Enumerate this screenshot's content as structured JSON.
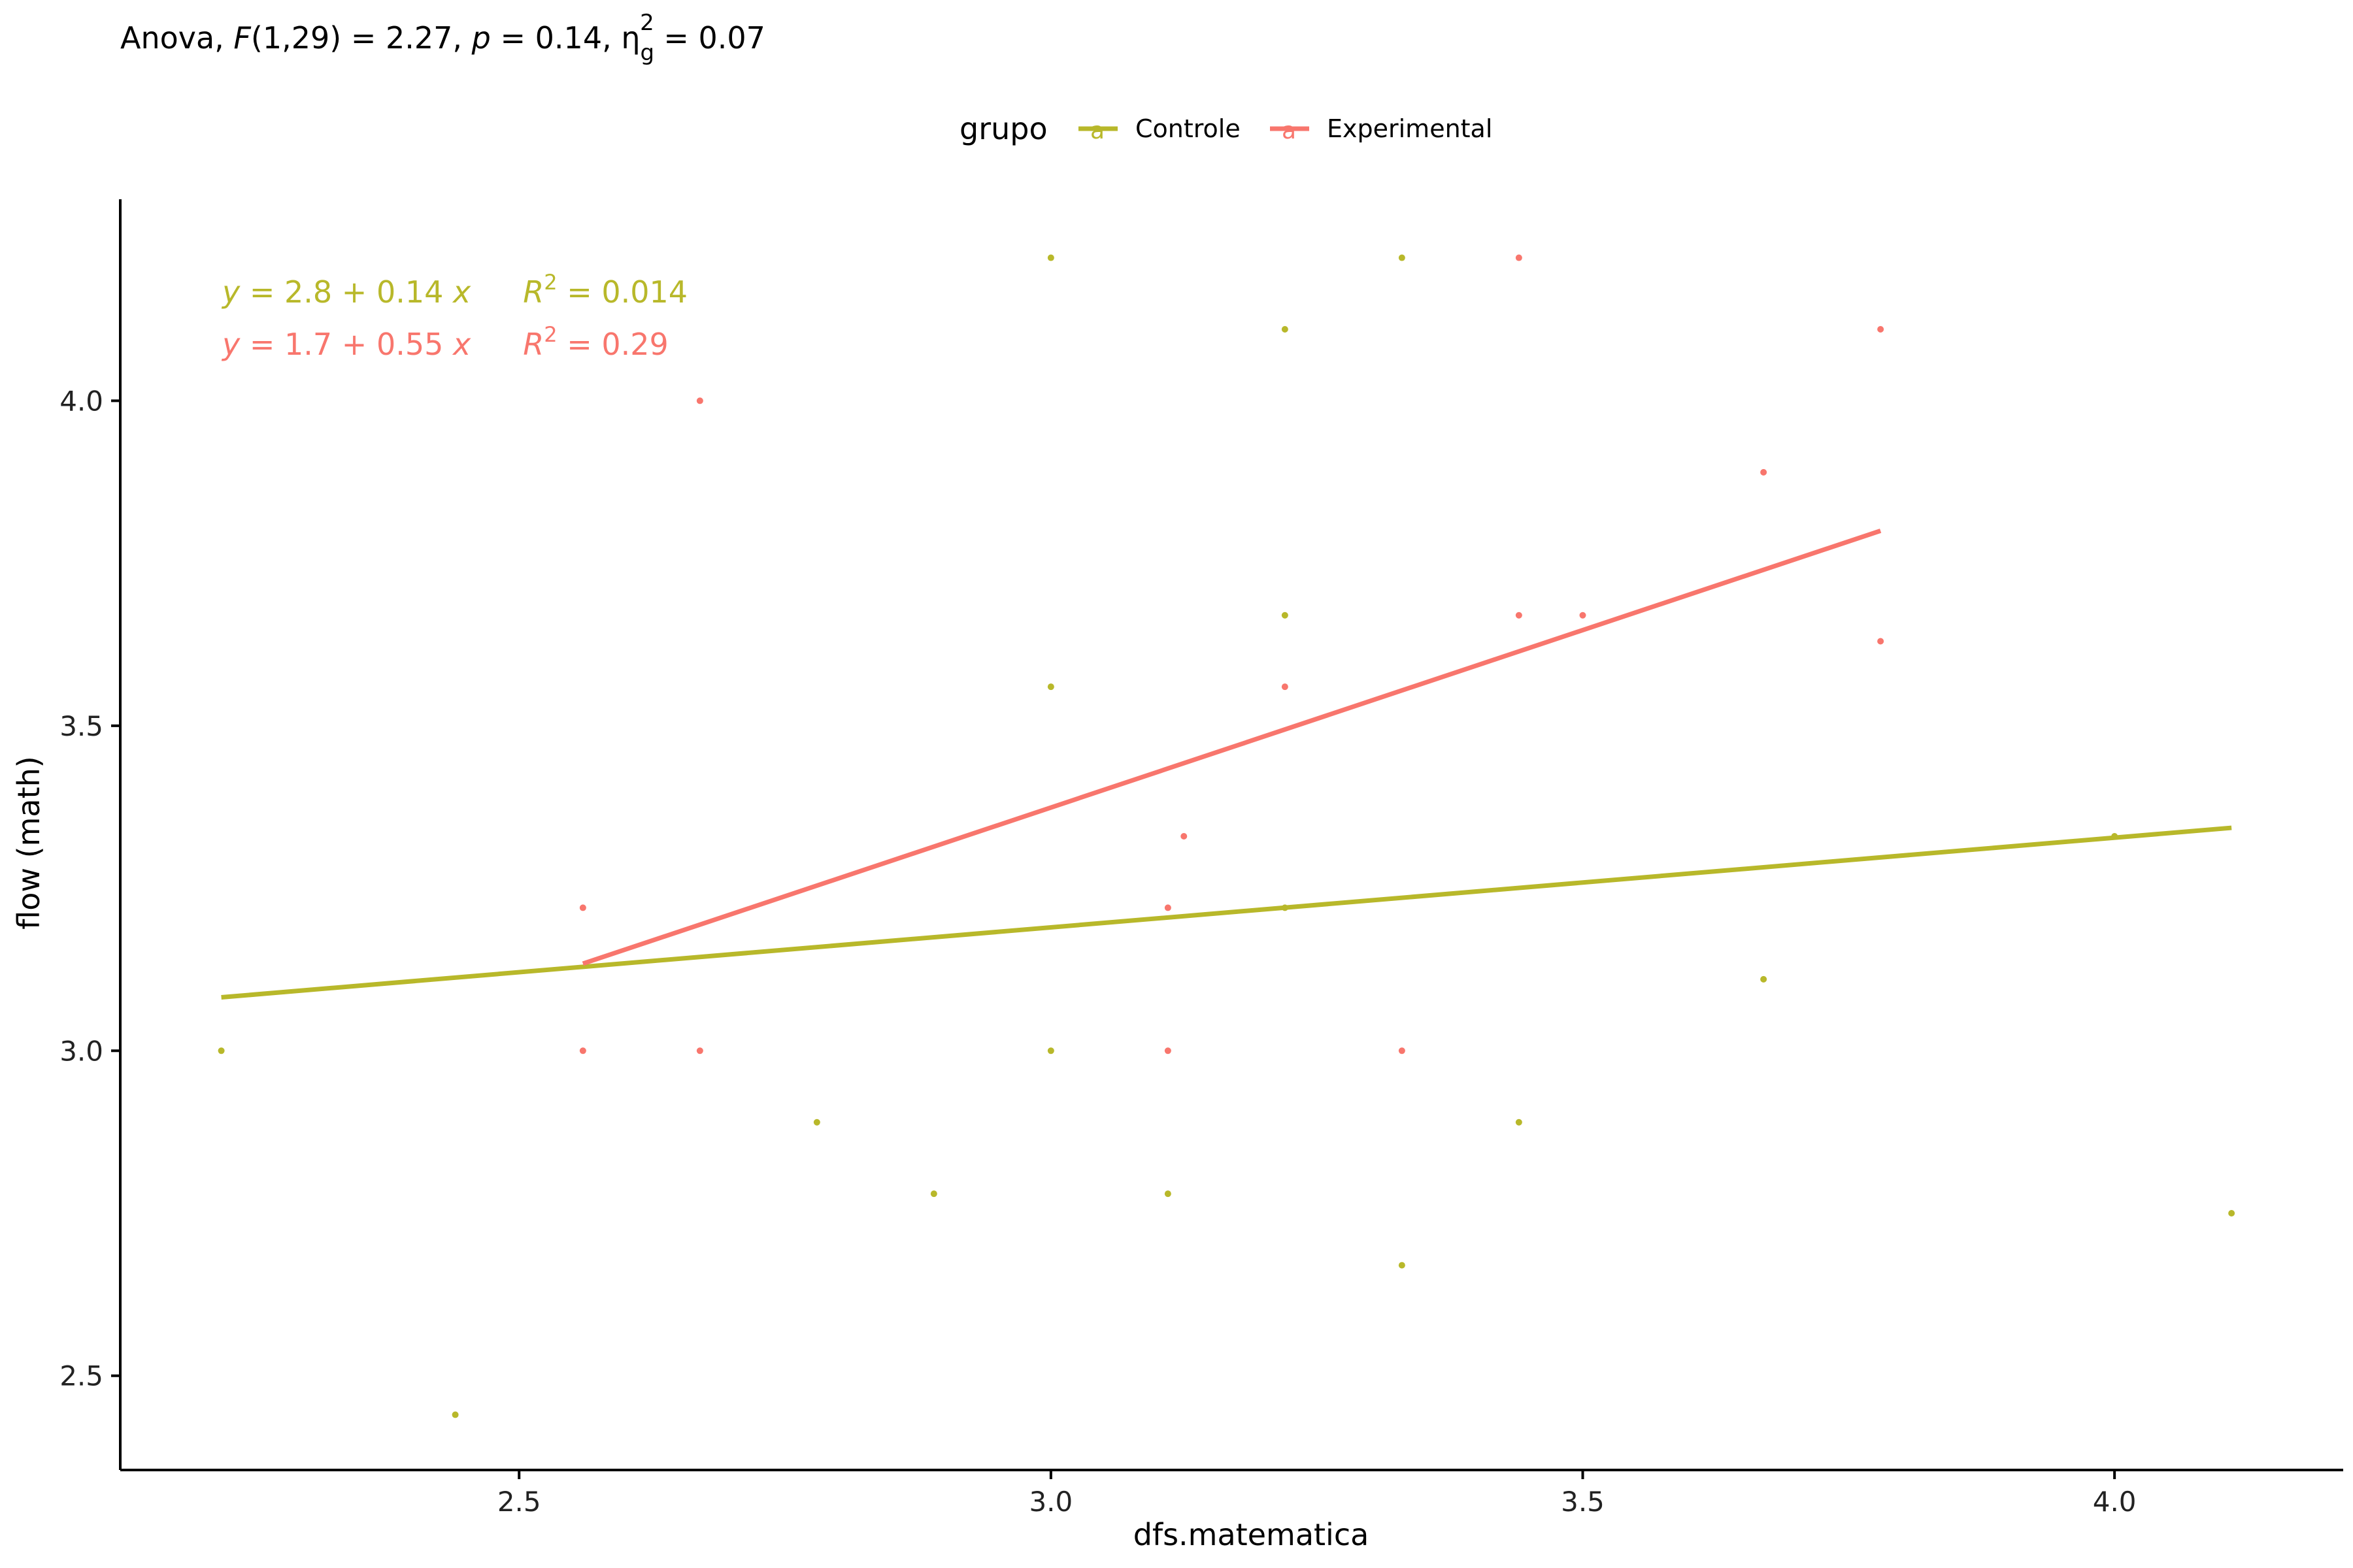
{
  "subtitle": {
    "prefix": "Anova, ",
    "f_symbol": "F",
    "df": "(1,29)",
    "f_value": " = 2.27, ",
    "p_symbol": "p",
    "p_value": " = 0.14, ",
    "eta_symbol": "η",
    "eta_sub": "g",
    "eta_sup": "2",
    "eta_value": " = 0.07"
  },
  "legend": {
    "title": "grupo",
    "key_glyph": "a",
    "position": "top"
  },
  "colors": {
    "controle": "#b8b82a",
    "experimental": "#f8766d",
    "axis": "#000000",
    "background": "#ffffff"
  },
  "equations": [
    {
      "series": "Controle",
      "y_part": "y",
      "eq_part": " = 2.8 + 0.14 ",
      "x_part": "x",
      "r_part": "R",
      "r_sup": "2",
      "r_value": " = 0.014"
    },
    {
      "series": "Experimental",
      "y_part": "y",
      "eq_part": " = 1.7 + 0.55 ",
      "x_part": "x",
      "r_part": "R",
      "r_sup": "2",
      "r_value": " = 0.29"
    }
  ],
  "chart_data": {
    "type": "scatter",
    "xlabel": "dfs.matematica",
    "ylabel": "flow (math)",
    "xlim": [
      2.125,
      4.215
    ],
    "ylim": [
      2.355,
      4.31
    ],
    "xticks": [
      2.5,
      3.0,
      3.5,
      4.0
    ],
    "xtick_labels": [
      "2.5",
      "3.0",
      "3.5",
      "4.0"
    ],
    "yticks": [
      2.5,
      3.0,
      3.5,
      4.0
    ],
    "ytick_labels": [
      "2.5",
      "3.0",
      "3.5",
      "4.0"
    ],
    "grid": false,
    "series": [
      {
        "name": "Controle",
        "points": [
          [
            2.22,
            3.0
          ],
          [
            2.44,
            2.44
          ],
          [
            2.78,
            2.89
          ],
          [
            2.89,
            2.78
          ],
          [
            3.0,
            4.22
          ],
          [
            3.0,
            3.56
          ],
          [
            3.0,
            3.0
          ],
          [
            3.11,
            2.78
          ],
          [
            3.22,
            4.11
          ],
          [
            3.22,
            3.67
          ],
          [
            3.22,
            3.22
          ],
          [
            3.33,
            4.22
          ],
          [
            3.33,
            2.67
          ],
          [
            3.44,
            2.89
          ],
          [
            3.67,
            3.11
          ],
          [
            4.0,
            3.33
          ],
          [
            4.11,
            2.75
          ]
        ],
        "fit": {
          "x": [
            2.22,
            4.11
          ],
          "y": [
            3.0822,
            3.343
          ]
        }
      },
      {
        "name": "Experimental",
        "points": [
          [
            2.56,
            3.22
          ],
          [
            2.56,
            3.0
          ],
          [
            2.67,
            4.0
          ],
          [
            2.67,
            3.0
          ],
          [
            3.11,
            3.22
          ],
          [
            3.11,
            3.0
          ],
          [
            3.125,
            3.33
          ],
          [
            3.22,
            3.56
          ],
          [
            3.33,
            3.0
          ],
          [
            3.44,
            4.22
          ],
          [
            3.44,
            3.67
          ],
          [
            3.5,
            3.67
          ],
          [
            3.67,
            3.89
          ],
          [
            3.78,
            4.11
          ],
          [
            3.78,
            3.63
          ]
        ],
        "fit": {
          "x": [
            2.56,
            3.78
          ],
          "y": [
            3.134,
            3.8
          ]
        }
      }
    ]
  }
}
